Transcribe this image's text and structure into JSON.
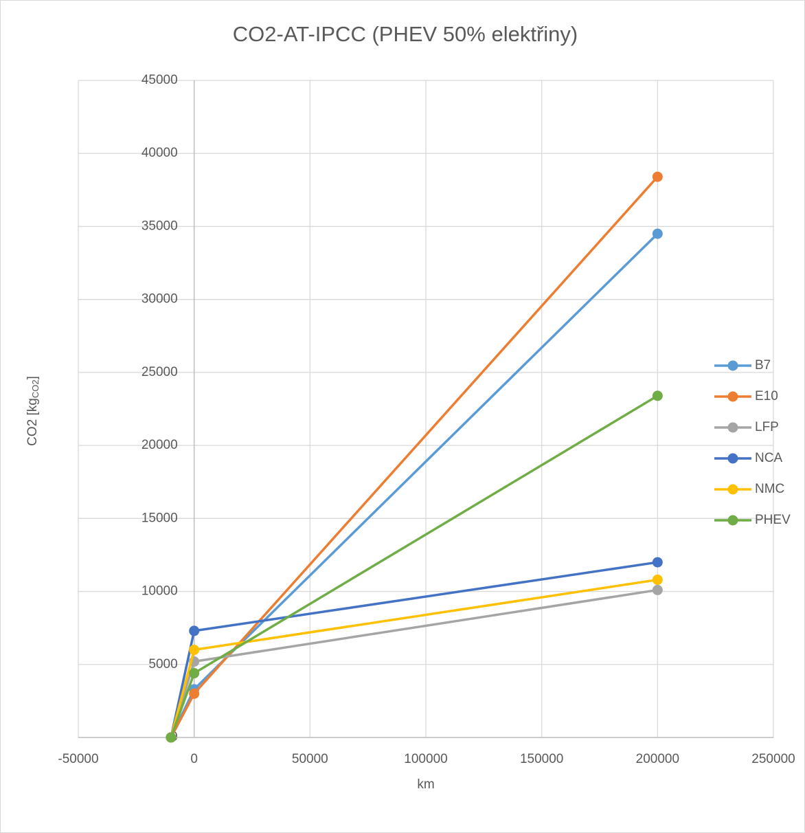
{
  "chart_data": {
    "type": "line",
    "title": "CO2-AT-IPCC (PHEV 50% elektřiny)",
    "x_label": "km",
    "y_label": {
      "main": "CO2 [kg",
      "sub": "CO2",
      "end": "]"
    },
    "x": [
      -10000,
      0,
      200000
    ],
    "series": [
      {
        "name": "B7",
        "color": "#5b9bd5",
        "values": [
          0,
          3300,
          34500
        ]
      },
      {
        "name": "E10",
        "color": "#ed7d31",
        "values": [
          0,
          3000,
          38400
        ]
      },
      {
        "name": "LFP",
        "color": "#a5a5a5",
        "values": [
          0,
          5200,
          10100
        ]
      },
      {
        "name": "NCA",
        "color": "#4472c4",
        "values": [
          0,
          7300,
          12000
        ]
      },
      {
        "name": "NMC",
        "color": "#ffc000",
        "values": [
          0,
          6000,
          10800
        ]
      },
      {
        "name": "PHEV",
        "color": "#70ad47",
        "values": [
          0,
          4400,
          23400
        ]
      }
    ],
    "xlim": [
      -50000,
      250000
    ],
    "xticks": [
      -50000,
      0,
      50000,
      100000,
      150000,
      200000,
      250000
    ],
    "ylim": [
      0,
      45000
    ],
    "yticks": [
      0,
      5000,
      10000,
      15000,
      20000,
      25000,
      30000,
      35000,
      40000,
      45000
    ],
    "grid": true,
    "legend": "right"
  }
}
